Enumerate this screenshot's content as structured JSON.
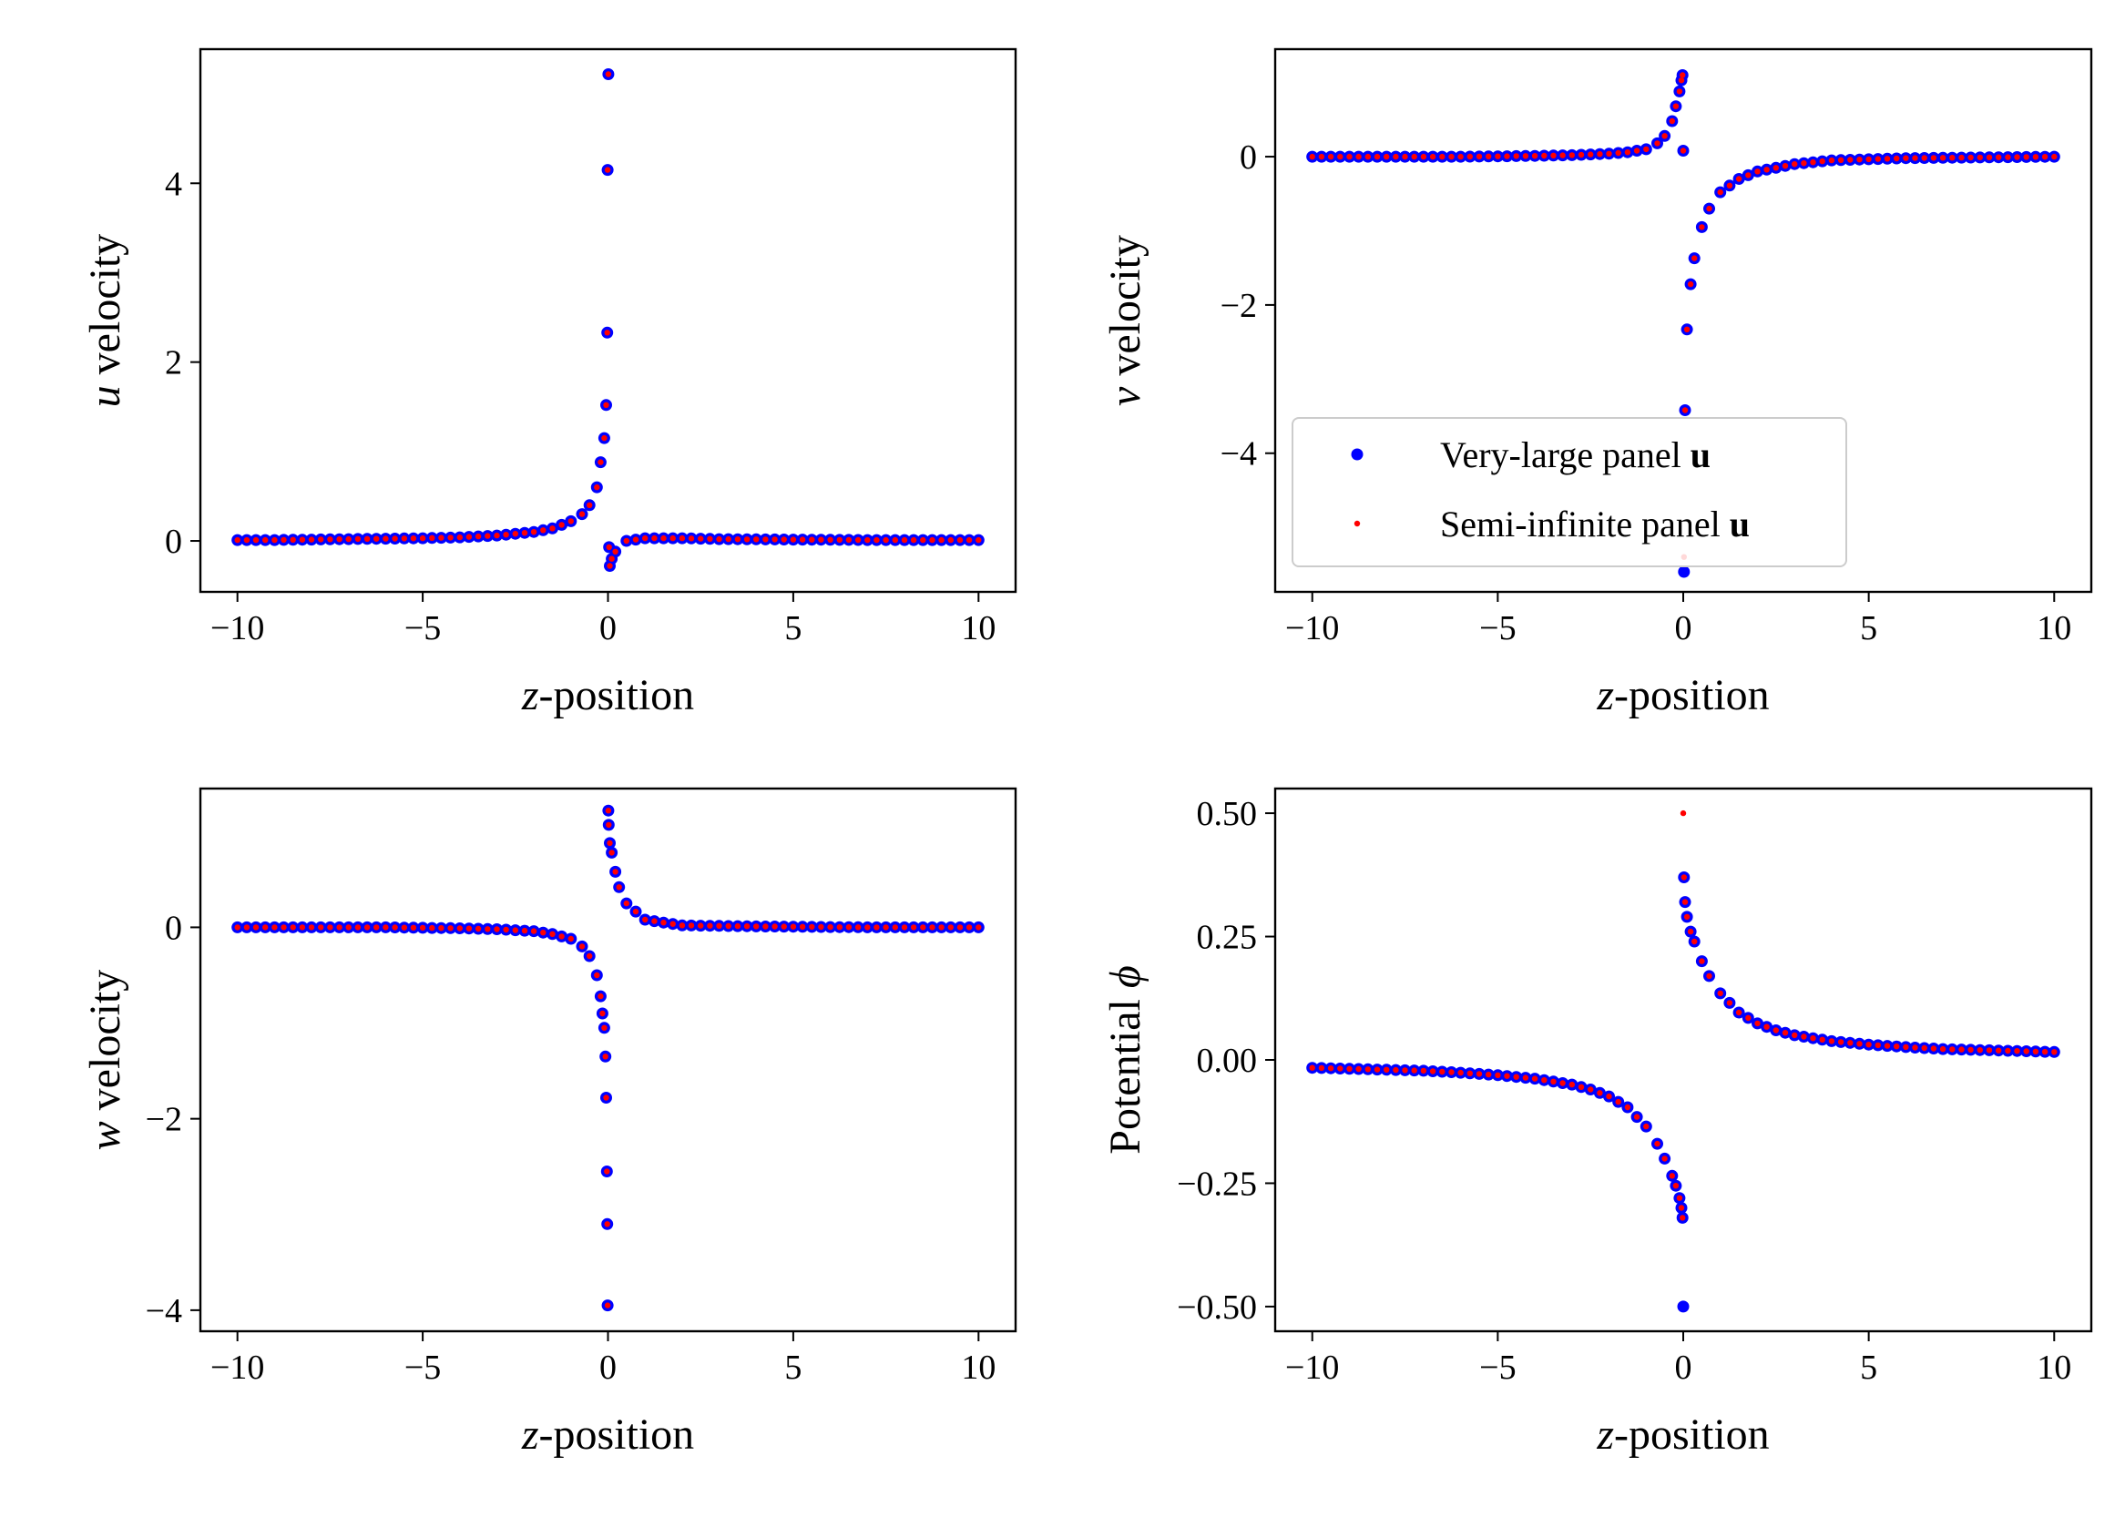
{
  "chart_data": [
    {
      "type": "scatter",
      "panel": "u",
      "xlabel": "z-position",
      "ylabel": "u velocity",
      "xlim": [
        -11,
        11
      ],
      "ylim": [
        -0.57,
        5.5
      ],
      "xticks": [
        -10,
        -5,
        0,
        5,
        10
      ],
      "yticks": [
        0,
        2,
        4
      ],
      "grid": false,
      "series": [
        {
          "name": "Very-large panel u",
          "color": "#0000ff",
          "marker": "large-dot",
          "x": [
            -10,
            -9,
            -8,
            -7,
            -6,
            -5,
            -4,
            -3,
            -2,
            -1.5,
            -1,
            -0.7,
            -0.5,
            -0.3,
            -0.2,
            -0.1,
            -0.05,
            -0.02,
            -0.01,
            0.01,
            0.03,
            0.05,
            0.1,
            0.2,
            0.5,
            1,
            2,
            3,
            5,
            7,
            10
          ],
          "y": [
            0.01,
            0.01,
            0.015,
            0.02,
            0.025,
            0.03,
            0.04,
            0.06,
            0.1,
            0.14,
            0.22,
            0.3,
            0.4,
            0.6,
            0.88,
            1.15,
            1.52,
            2.33,
            4.15,
            5.22,
            -0.07,
            -0.28,
            -0.2,
            -0.12,
            0.0,
            0.03,
            0.03,
            0.02,
            0.015,
            0.01,
            0.01
          ]
        },
        {
          "name": "Semi-infinite panel u",
          "color": "#ff0000",
          "marker": "small-dot",
          "x": [
            -10,
            -9,
            -8,
            -7,
            -6,
            -5,
            -4,
            -3,
            -2,
            -1.5,
            -1,
            -0.7,
            -0.5,
            -0.3,
            -0.2,
            -0.1,
            -0.05,
            -0.02,
            -0.01,
            0.01,
            0.03,
            0.05,
            0.1,
            0.2,
            0.5,
            1,
            2,
            3,
            5,
            7,
            10
          ],
          "y": [
            0.01,
            0.01,
            0.015,
            0.02,
            0.025,
            0.03,
            0.04,
            0.06,
            0.1,
            0.14,
            0.22,
            0.3,
            0.4,
            0.6,
            0.88,
            1.15,
            1.52,
            2.33,
            4.15,
            5.22,
            -0.07,
            -0.28,
            -0.2,
            -0.12,
            0.0,
            0.03,
            0.03,
            0.02,
            0.015,
            0.01,
            0.01
          ]
        }
      ]
    },
    {
      "type": "scatter",
      "panel": "v",
      "xlabel": "z-position",
      "ylabel": "v velocity",
      "xlim": [
        -11,
        11
      ],
      "ylim": [
        -5.87,
        1.45
      ],
      "xticks": [
        -10,
        -5,
        0,
        5,
        10
      ],
      "yticks": [
        -4,
        -2,
        0
      ],
      "grid": false,
      "legend": {
        "placement": "lower-left",
        "entries": [
          {
            "text": "Very-large panel ",
            "bold": "u",
            "color": "#0000ff",
            "marker": "large-dot"
          },
          {
            "text": "Semi-infinite panel ",
            "bold": "u",
            "color": "#ff0000",
            "marker": "small-dot"
          }
        ]
      },
      "series": [
        {
          "name": "Very-large panel u",
          "color": "#0000ff",
          "marker": "large-dot",
          "x": [
            -10,
            -8,
            -6,
            -4,
            -3,
            -2,
            -1.5,
            -1,
            -0.7,
            -0.5,
            -0.3,
            -0.2,
            -0.1,
            -0.05,
            -0.02,
            0,
            0.02,
            0.05,
            0.1,
            0.2,
            0.3,
            0.5,
            0.7,
            1,
            1.5,
            2,
            3,
            4,
            6,
            8,
            10
          ],
          "y": [
            0,
            0,
            0,
            0.01,
            0.02,
            0.04,
            0.06,
            0.1,
            0.18,
            0.28,
            0.48,
            0.68,
            0.88,
            1.03,
            1.1,
            0.08,
            -5.6,
            -3.42,
            -2.33,
            -1.72,
            -1.37,
            -0.95,
            -0.7,
            -0.48,
            -0.3,
            -0.2,
            -0.1,
            -0.05,
            -0.02,
            -0.01,
            0
          ]
        },
        {
          "name": "Semi-infinite panel u",
          "color": "#ff0000",
          "marker": "small-dot",
          "x": [
            -10,
            -8,
            -6,
            -4,
            -3,
            -2,
            -1.5,
            -1,
            -0.7,
            -0.5,
            -0.3,
            -0.2,
            -0.1,
            -0.05,
            -0.02,
            0,
            0.02,
            0.05,
            0.1,
            0.2,
            0.3,
            0.5,
            0.7,
            1,
            1.5,
            2,
            3,
            4,
            6,
            8,
            10
          ],
          "y": [
            0,
            0,
            0,
            0.01,
            0.02,
            0.04,
            0.06,
            0.1,
            0.18,
            0.28,
            0.48,
            0.68,
            0.88,
            1.03,
            1.1,
            0.08,
            -5.4,
            -3.42,
            -2.33,
            -1.72,
            -1.37,
            -0.95,
            -0.7,
            -0.48,
            -0.3,
            -0.2,
            -0.1,
            -0.05,
            -0.02,
            -0.01,
            0
          ]
        }
      ]
    },
    {
      "type": "scatter",
      "panel": "w",
      "xlabel": "z-position",
      "ylabel": "w velocity",
      "xlim": [
        -11,
        11
      ],
      "ylim": [
        -4.22,
        1.45
      ],
      "xticks": [
        -10,
        -5,
        0,
        5,
        10
      ],
      "yticks": [
        -4,
        -2,
        0
      ],
      "grid": false,
      "series": [
        {
          "name": "Very-large panel u",
          "color": "#0000ff",
          "marker": "large-dot",
          "x": [
            -10,
            -8,
            -6,
            -4,
            -3,
            -2,
            -1.5,
            -1,
            -0.7,
            -0.5,
            -0.3,
            -0.2,
            -0.15,
            -0.1,
            -0.07,
            -0.05,
            -0.03,
            -0.02,
            -0.01,
            0.01,
            0.02,
            0.05,
            0.1,
            0.2,
            0.3,
            0.5,
            1,
            2,
            4,
            7,
            10
          ],
          "y": [
            0,
            0,
            0,
            -0.01,
            -0.02,
            -0.04,
            -0.07,
            -0.12,
            -0.2,
            -0.3,
            -0.5,
            -0.72,
            -0.9,
            -1.05,
            -1.35,
            -1.78,
            -2.55,
            -3.1,
            -3.95,
            1.22,
            1.07,
            0.88,
            0.78,
            0.58,
            0.42,
            0.25,
            0.08,
            0.02,
            0.01,
            0,
            0
          ]
        },
        {
          "name": "Semi-infinite panel u",
          "color": "#ff0000",
          "marker": "small-dot",
          "x": [
            -10,
            -8,
            -6,
            -4,
            -3,
            -2,
            -1.5,
            -1,
            -0.7,
            -0.5,
            -0.3,
            -0.2,
            -0.15,
            -0.1,
            -0.07,
            -0.05,
            -0.03,
            -0.02,
            -0.01,
            0.01,
            0.02,
            0.05,
            0.1,
            0.2,
            0.3,
            0.5,
            1,
            2,
            4,
            7,
            10
          ],
          "y": [
            0,
            0,
            0,
            -0.01,
            -0.02,
            -0.04,
            -0.07,
            -0.12,
            -0.2,
            -0.3,
            -0.5,
            -0.72,
            -0.9,
            -1.05,
            -1.35,
            -1.78,
            -2.55,
            -3.1,
            -3.95,
            1.22,
            1.07,
            0.88,
            0.78,
            0.58,
            0.42,
            0.25,
            0.08,
            0.02,
            0.01,
            0,
            0
          ]
        }
      ]
    },
    {
      "type": "scatter",
      "panel": "phi",
      "xlabel": "z-position",
      "ylabel": "Potential ϕ",
      "xlim": [
        -11,
        11
      ],
      "ylim": [
        -0.55,
        0.55
      ],
      "xticks": [
        -10,
        -5,
        0,
        5,
        10
      ],
      "yticks": [
        -0.5,
        -0.25,
        0,
        0.25,
        0.5
      ],
      "ytick_labels": [
        "−0.50",
        "−0.25",
        "0.00",
        "0.25",
        "0.50"
      ],
      "grid": false,
      "series": [
        {
          "name": "Very-large panel u",
          "color": "#0000ff",
          "marker": "large-dot",
          "x": [
            -10,
            -9,
            -8,
            -7,
            -6,
            -5,
            -4,
            -3,
            -2.5,
            -2,
            -1.5,
            -1,
            -0.7,
            -0.5,
            -0.3,
            -0.2,
            -0.1,
            -0.05,
            -0.02,
            0,
            0.02,
            0.05,
            0.1,
            0.2,
            0.3,
            0.5,
            0.7,
            1,
            1.5,
            2,
            2.5,
            3,
            4,
            5,
            6,
            7,
            8,
            9,
            10
          ],
          "y": [
            -0.016,
            -0.018,
            -0.02,
            -0.022,
            -0.026,
            -0.031,
            -0.038,
            -0.05,
            -0.06,
            -0.074,
            -0.096,
            -0.135,
            -0.17,
            -0.2,
            -0.235,
            -0.255,
            -0.28,
            -0.3,
            -0.32,
            -0.5,
            0.37,
            0.32,
            0.29,
            0.26,
            0.24,
            0.2,
            0.17,
            0.135,
            0.096,
            0.074,
            0.06,
            0.05,
            0.038,
            0.031,
            0.026,
            0.022,
            0.02,
            0.018,
            0.016
          ]
        },
        {
          "name": "Semi-infinite panel u",
          "color": "#ff0000",
          "marker": "small-dot",
          "x": [
            -10,
            -9,
            -8,
            -7,
            -6,
            -5,
            -4,
            -3,
            -2.5,
            -2,
            -1.5,
            -1,
            -0.7,
            -0.5,
            -0.3,
            -0.2,
            -0.1,
            -0.05,
            -0.02,
            0,
            0.02,
            0.05,
            0.1,
            0.2,
            0.3,
            0.5,
            0.7,
            1,
            1.5,
            2,
            2.5,
            3,
            4,
            5,
            6,
            7,
            8,
            9,
            10
          ],
          "y": [
            -0.016,
            -0.018,
            -0.02,
            -0.022,
            -0.026,
            -0.031,
            -0.038,
            -0.05,
            -0.06,
            -0.074,
            -0.096,
            -0.135,
            -0.17,
            -0.2,
            -0.235,
            -0.255,
            -0.28,
            -0.3,
            -0.32,
            0.5,
            0.37,
            0.32,
            0.29,
            0.26,
            0.24,
            0.2,
            0.17,
            0.135,
            0.096,
            0.074,
            0.06,
            0.05,
            0.038,
            0.031,
            0.026,
            0.022,
            0.02,
            0.018,
            0.016
          ]
        }
      ]
    }
  ]
}
